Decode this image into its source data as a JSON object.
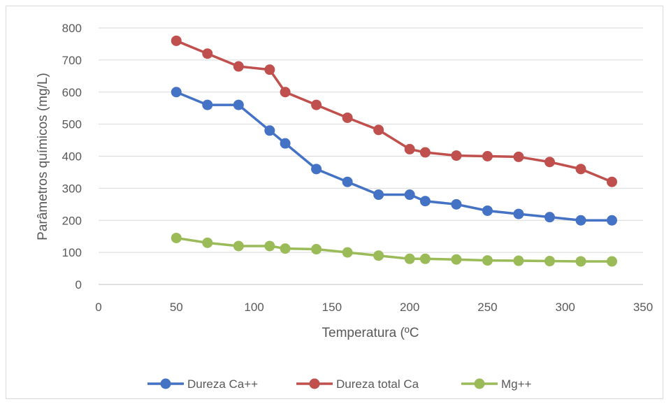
{
  "chart_data": {
    "type": "line",
    "title": "",
    "xlabel": "Temperatura (ºC",
    "ylabel": "Parâmetros químicos (mg/L)",
    "xlim": [
      0,
      350
    ],
    "ylim": [
      0,
      800
    ],
    "xticks": [
      "0",
      "50",
      "100",
      "150",
      "200",
      "250",
      "300",
      "350"
    ],
    "yticks": [
      "0",
      "100",
      "200",
      "300",
      "400",
      "500",
      "600",
      "700",
      "800"
    ],
    "grid": "horizontal",
    "legend_position": "bottom",
    "x": [
      50,
      70,
      90,
      110,
      120,
      140,
      160,
      180,
      200,
      210,
      230,
      250,
      270,
      290,
      310,
      330
    ],
    "series": [
      {
        "name": "Dureza Ca++",
        "color": "#4472c4",
        "values": [
          600,
          560,
          560,
          480,
          440,
          360,
          320,
          280,
          280,
          260,
          250,
          230,
          220,
          210,
          200,
          200
        ]
      },
      {
        "name": "Dureza total Ca",
        "color": "#c0504d",
        "values": [
          760,
          720,
          680,
          670,
          600,
          560,
          520,
          482,
          422,
          412,
          402,
          400,
          398,
          382,
          360,
          320
        ]
      },
      {
        "name": "Mg++",
        "color": "#9bbb59",
        "values": [
          145,
          130,
          120,
          120,
          112,
          110,
          100,
          90,
          80,
          80,
          78,
          75,
          74,
          73,
          72,
          72
        ]
      }
    ]
  }
}
